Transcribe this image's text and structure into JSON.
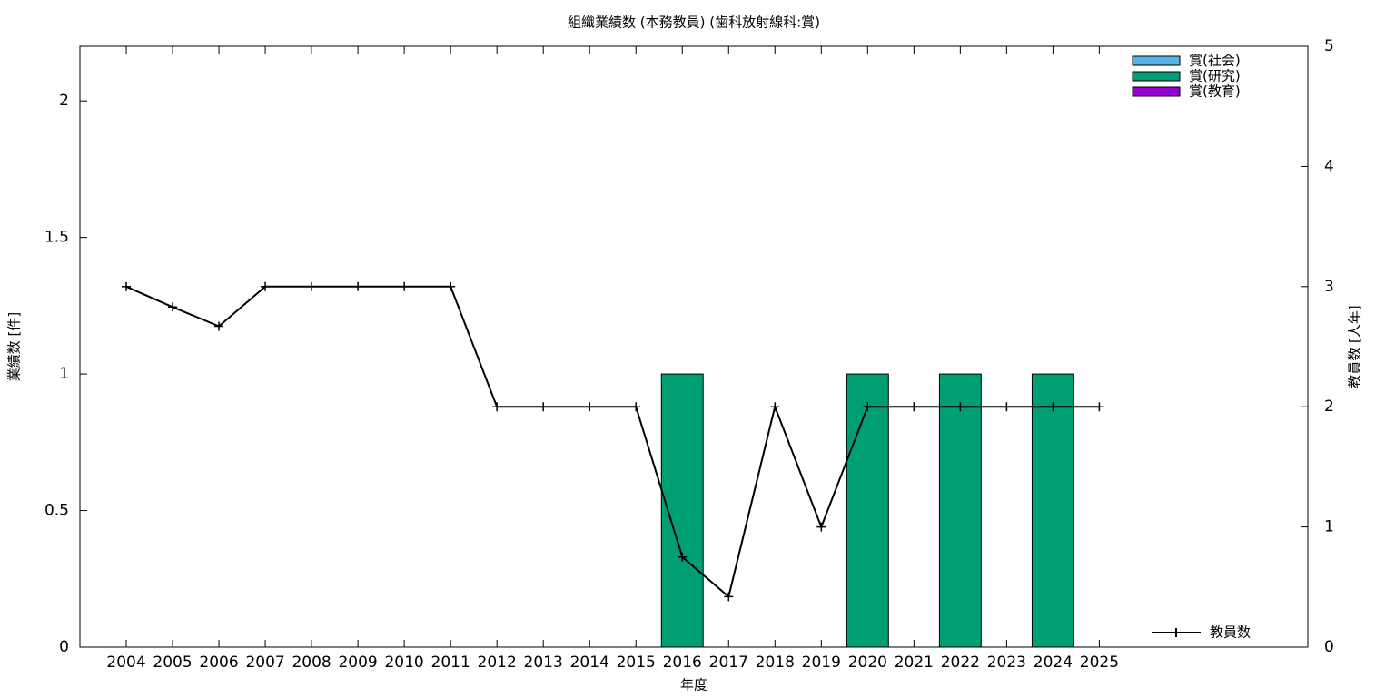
{
  "chart_data": {
    "type": "bar",
    "title": "組織業績数 (本務教員) (歯科放射線科:賞)",
    "xlabel": "年度",
    "ylabel": "業績数 [件]",
    "y2label": "教員数 [人年]",
    "x": [
      2004,
      2005,
      2006,
      2007,
      2008,
      2009,
      2010,
      2011,
      2012,
      2013,
      2014,
      2015,
      2016,
      2017,
      2018,
      2019,
      2020,
      2021,
      2022,
      2023,
      2024,
      2025
    ],
    "xlim": [
      2003,
      2029.5
    ],
    "ylim": [
      0,
      2.2
    ],
    "yticks": [
      0,
      0.5,
      1,
      1.5,
      2
    ],
    "y2lim": [
      0,
      5
    ],
    "y2ticks": [
      0,
      1,
      2,
      3,
      4,
      5
    ],
    "series": [
      {
        "name": "賞(社会)",
        "color": "#56b4e9",
        "type": "bar",
        "values": [
          0,
          0,
          0,
          0,
          0,
          0,
          0,
          0,
          0,
          0,
          0,
          0,
          0,
          0,
          0,
          0,
          0,
          0,
          0,
          0,
          0,
          0
        ]
      },
      {
        "name": "賞(研究)",
        "color": "#009e73",
        "type": "bar",
        "values": [
          0,
          0,
          0,
          0,
          0,
          0,
          0,
          0,
          0,
          0,
          0,
          0,
          1,
          0,
          0,
          0,
          1,
          0,
          1,
          0,
          1,
          0
        ]
      },
      {
        "name": "賞(教育)",
        "color": "#9400d3",
        "type": "bar",
        "values": [
          0,
          0,
          0,
          0,
          0,
          0,
          0,
          0,
          0,
          0,
          0,
          0,
          0,
          0,
          0,
          0,
          0,
          0,
          0,
          0,
          0,
          0
        ]
      },
      {
        "name": "教員数",
        "color": "#000000",
        "type": "line",
        "axis": "y2",
        "values": [
          3,
          2.83,
          2.67,
          3,
          3,
          3,
          3,
          3,
          2,
          2,
          2,
          2,
          0.75,
          0.42,
          2,
          1,
          2,
          2,
          2,
          2,
          2,
          2
        ]
      }
    ]
  }
}
